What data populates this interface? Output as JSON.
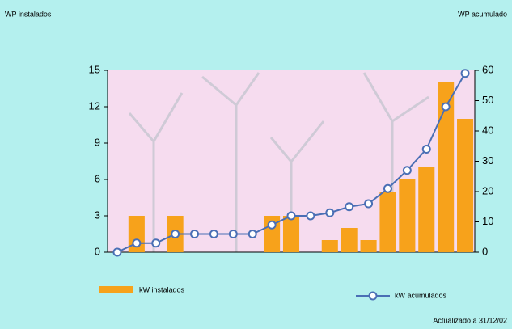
{
  "chart_data": {
    "type": "bar",
    "y_label": "WP instalados",
    "y2_label": "WP acumulado",
    "note": "Actualizado a 31/12/02",
    "categories": [
      null,
      null,
      null,
      null,
      null,
      null,
      null,
      null,
      null,
      null,
      null,
      null,
      null,
      null,
      null,
      null,
      null,
      null,
      null
    ],
    "series": [
      {
        "name": "kW instalados",
        "type": "bar",
        "color": "#f7a21b",
        "values": [
          0,
          3,
          0,
          3,
          0,
          0,
          0,
          0,
          3,
          3,
          0,
          1,
          2,
          1,
          5,
          6,
          7,
          14,
          11
        ]
      },
      {
        "name": "kW acumulados",
        "type": "line",
        "axis": "y2",
        "color": "#4a6fb5",
        "values": [
          0,
          3,
          3,
          6,
          6,
          6,
          6,
          6,
          9,
          12,
          12,
          13,
          15,
          16,
          21,
          27,
          34,
          48,
          59
        ]
      }
    ],
    "ylim": [
      0,
      15
    ],
    "yticks": [
      0,
      3,
      6,
      9,
      12,
      15
    ],
    "y2lim": [
      0,
      60
    ],
    "y2ticks": [
      0,
      10,
      20,
      30,
      40,
      50,
      60
    ]
  }
}
